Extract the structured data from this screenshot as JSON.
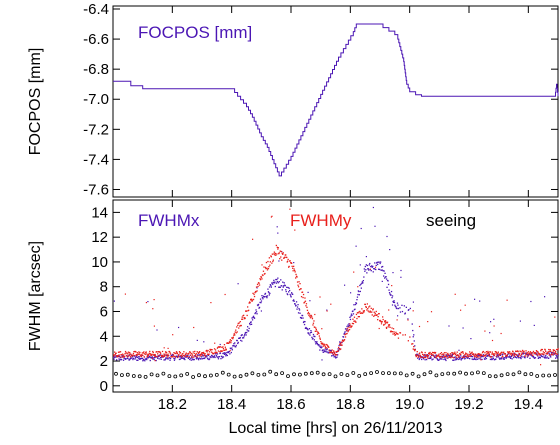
{
  "chart_data": [
    {
      "type": "line",
      "panel": "top",
      "ylabel": "FOCPOS [mm]",
      "ylim": [
        -7.65,
        -6.38
      ],
      "yticks": [
        -6.4,
        -6.6,
        -6.8,
        -7.0,
        -7.2,
        -7.4,
        -7.6
      ],
      "ytick_labels": [
        "-6.4",
        "-6.6",
        "-6.8",
        "-7.0",
        "-7.2",
        "-7.4",
        "-7.6"
      ],
      "xlim": [
        18.0,
        19.5
      ],
      "annotation": "FOCPOS [mm]",
      "series": [
        {
          "color": "#4b16b4",
          "step": true,
          "x": [
            18.0,
            18.045,
            18.06,
            18.1,
            18.4,
            18.42,
            18.45,
            18.47,
            18.5,
            18.52,
            18.56,
            18.6,
            18.68,
            18.76,
            18.81,
            18.82,
            18.89,
            18.95,
            18.96,
            18.98,
            18.99,
            19.0,
            19.02,
            19.04,
            19.3,
            19.49,
            19.495,
            19.5
          ],
          "y": [
            -6.88,
            -6.88,
            -6.91,
            -6.93,
            -6.93,
            -6.98,
            -7.05,
            -7.12,
            -7.25,
            -7.32,
            -7.51,
            -7.38,
            -7.05,
            -6.72,
            -6.55,
            -6.5,
            -6.5,
            -6.57,
            -6.6,
            -6.75,
            -6.9,
            -6.95,
            -6.97,
            -6.98,
            -6.98,
            -6.98,
            -6.9,
            -6.98
          ]
        }
      ]
    },
    {
      "type": "scatter",
      "panel": "bottom",
      "xlabel": "Local time [hrs] on 26/11/2013",
      "ylabel": "FWHM [arcsec]",
      "ylim": [
        -0.5,
        15
      ],
      "yticks": [
        0,
        2,
        4,
        6,
        8,
        10,
        12,
        14
      ],
      "ytick_labels": [
        "0",
        "2",
        "4",
        "6",
        "8",
        "10",
        "12",
        "14"
      ],
      "xlim": [
        18.0,
        19.5
      ],
      "xticks": [
        18.2,
        18.4,
        18.6,
        18.8,
        19.0,
        19.2,
        19.4
      ],
      "xtick_labels": [
        "18.2",
        "18.4",
        "18.6",
        "18.8",
        "19.0",
        "19.2",
        "19.4"
      ],
      "series": [
        {
          "name": "FWHMx",
          "color": "#4b16b4",
          "x": [
            18.0,
            18.1,
            18.2,
            18.3,
            18.38,
            18.45,
            18.5,
            18.55,
            18.6,
            18.65,
            18.7,
            18.75,
            18.8,
            18.85,
            18.9,
            18.95,
            19.0,
            19.02,
            19.1,
            19.2,
            19.3,
            19.4,
            19.5
          ],
          "y": [
            2.3,
            2.3,
            2.35,
            2.35,
            2.5,
            4.5,
            7.0,
            8.5,
            7.5,
            4.8,
            3.0,
            2.5,
            5.5,
            9.5,
            9.8,
            6.5,
            6.0,
            2.4,
            2.3,
            2.4,
            2.4,
            2.5,
            2.5
          ]
        },
        {
          "name": "FWHMy",
          "color": "#e8201c",
          "x": [
            18.0,
            18.1,
            18.2,
            18.3,
            18.38,
            18.45,
            18.5,
            18.55,
            18.6,
            18.65,
            18.7,
            18.75,
            18.8,
            18.85,
            18.9,
            18.95,
            19.0,
            19.02,
            19.1,
            19.2,
            19.3,
            19.4,
            19.5
          ],
          "y": [
            2.6,
            2.6,
            2.6,
            2.6,
            3.2,
            6.0,
            9.0,
            11.0,
            9.8,
            6.5,
            3.5,
            2.6,
            5.0,
            6.5,
            5.5,
            4.2,
            3.8,
            2.6,
            2.5,
            2.6,
            2.6,
            2.7,
            2.8
          ]
        },
        {
          "name": "seeing",
          "color": "#000000",
          "marker": "open-circle",
          "x": [
            18.0,
            18.1,
            18.2,
            18.3,
            18.4,
            18.5,
            18.6,
            18.7,
            18.8,
            18.9,
            19.0,
            19.1,
            19.2,
            19.3,
            19.4,
            19.5
          ],
          "y": [
            0.9,
            0.85,
            0.9,
            0.85,
            0.9,
            1.0,
            0.95,
            0.9,
            0.9,
            0.95,
            0.9,
            0.95,
            0.9,
            0.95,
            0.9,
            0.95
          ]
        }
      ]
    }
  ]
}
